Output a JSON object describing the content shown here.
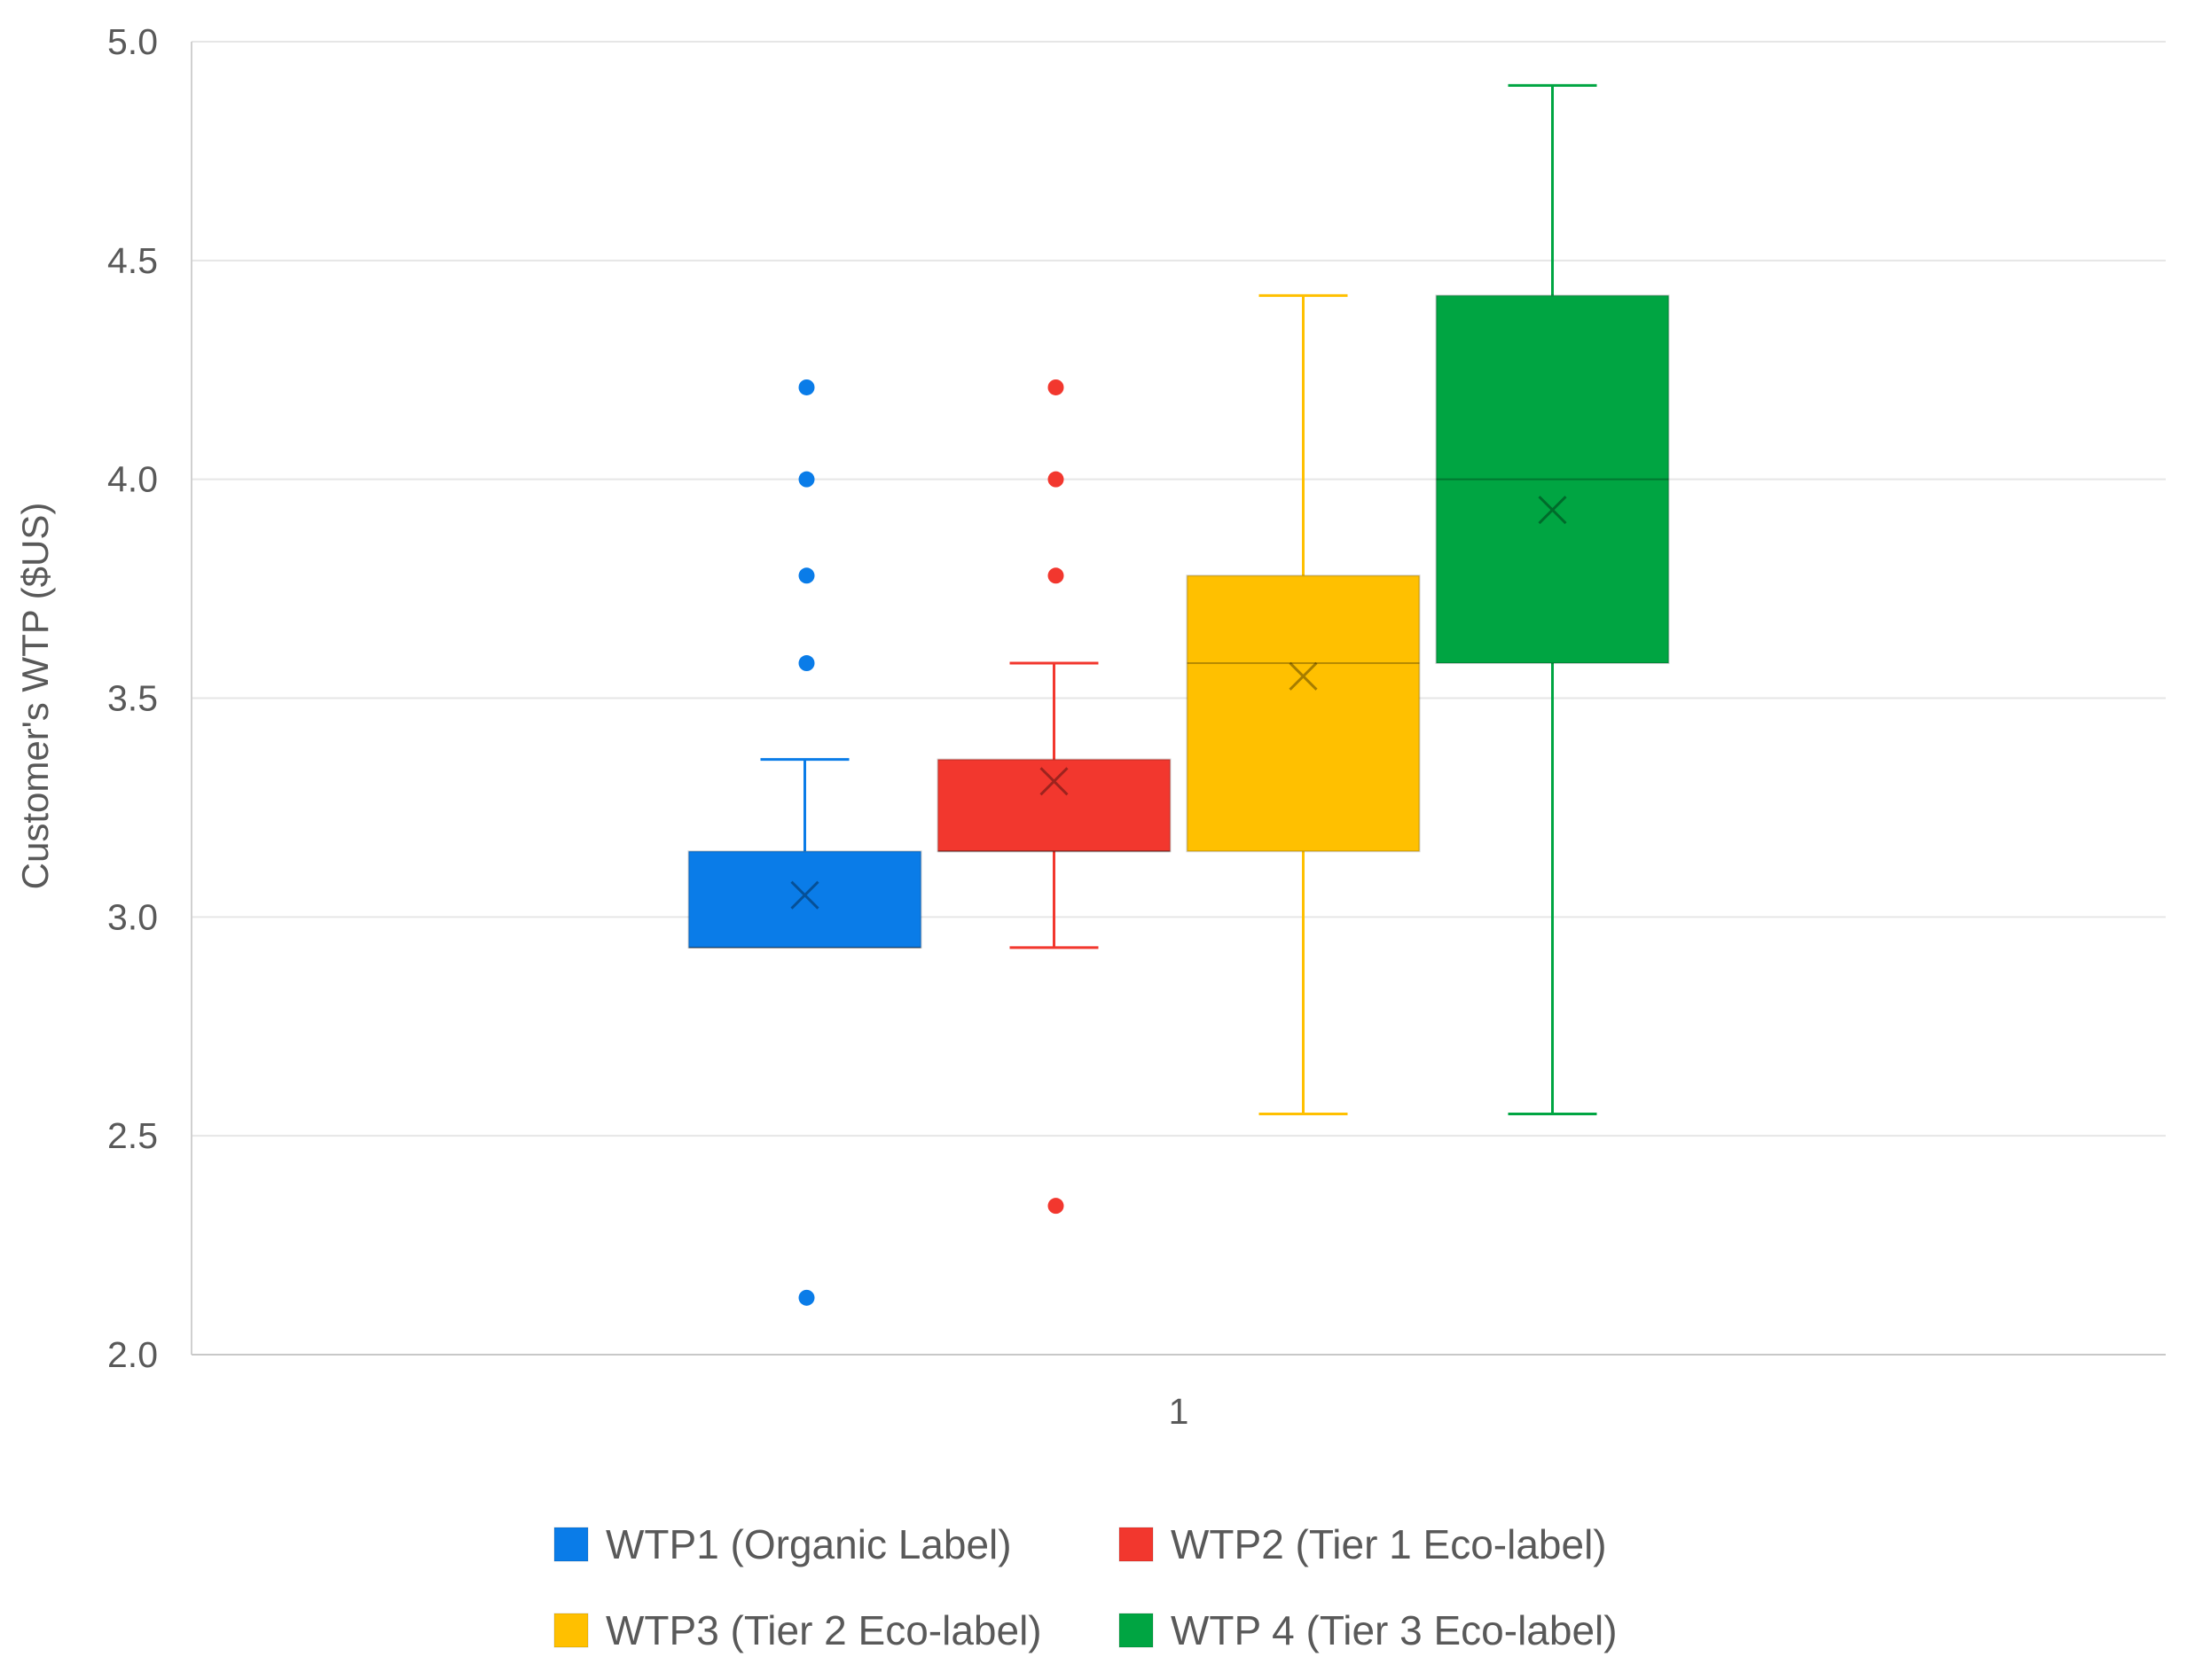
{
  "chart_data": {
    "type": "boxplot",
    "title": "",
    "xlabel": "",
    "ylabel": "Customer's WTP ($US)",
    "categories": [
      "1"
    ],
    "ylim": [
      2.0,
      5.0
    ],
    "yticks": [
      "2.0",
      "2.5",
      "3.0",
      "3.5",
      "4.0",
      "4.5",
      "5.0"
    ],
    "grid": true,
    "legend_position": "bottom",
    "series": [
      {
        "name": "WTP1 (Organic Label)",
        "color": "#0a7ce8",
        "min": 2.93,
        "q1": 2.93,
        "median": 2.93,
        "q3": 3.15,
        "max": 3.36,
        "mean": 3.05,
        "outliers": [
          4.21,
          4.0,
          3.78,
          3.58,
          2.13
        ]
      },
      {
        "name": "WTP2 (Tier 1 Eco-label)",
        "color": "#f2372e",
        "min": 2.93,
        "q1": 3.15,
        "median": 3.15,
        "q3": 3.36,
        "max": 3.58,
        "mean": 3.31,
        "outliers": [
          4.21,
          4.0,
          3.78,
          2.34
        ]
      },
      {
        "name": "WTP3 (Tier 2 Eco-label)",
        "color": "#ffc000",
        "min": 2.55,
        "q1": 3.15,
        "median": 3.58,
        "q3": 3.78,
        "max": 4.42,
        "mean": 3.55,
        "outliers": []
      },
      {
        "name": "WTP 4 (Tier 3 Eco-label)",
        "color": "#00a542",
        "min": 2.55,
        "q1": 3.58,
        "median": 4.0,
        "q3": 4.42,
        "max": 4.9,
        "mean": 3.93,
        "outliers": []
      }
    ]
  }
}
